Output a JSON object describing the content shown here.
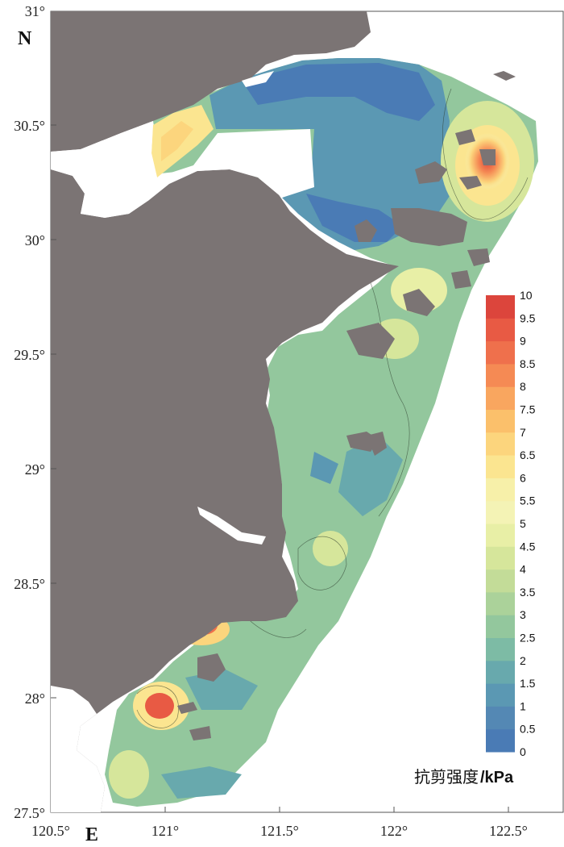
{
  "map": {
    "north_label": "N",
    "east_label": "E",
    "lat_ticks": [
      "31°",
      "30.5°",
      "30°",
      "29.5°",
      "29°",
      "28.5°",
      "28°",
      "27.5°"
    ],
    "lon_ticks": [
      "120.5°",
      "121°",
      "121.5°",
      "122°",
      "122.5°"
    ],
    "land_color": "#7b7474",
    "water_color": "#ffffff"
  },
  "legend": {
    "title": "抗剪强度",
    "unit": "/kPa",
    "levels": [
      "0",
      "0.5",
      "1",
      "1.5",
      "2",
      "2.5",
      "3",
      "3.5",
      "4",
      "4.5",
      "5",
      "5.5",
      "6",
      "6.5",
      "7",
      "7.5",
      "8",
      "8.5",
      "9",
      "9.5",
      "10"
    ],
    "colors": [
      "#4a7bb5",
      "#5488b4",
      "#5b98b3",
      "#68a9ad",
      "#7dbba5",
      "#93c79d",
      "#abd29a",
      "#c3dc98",
      "#d6e69b",
      "#e8efa6",
      "#f4f3b5",
      "#f7f0a9",
      "#fbe590",
      "#fcd57d",
      "#fbc06b",
      "#f9a65f",
      "#f58a54",
      "#ef704c",
      "#e85a44",
      "#dc453c"
    ]
  }
}
